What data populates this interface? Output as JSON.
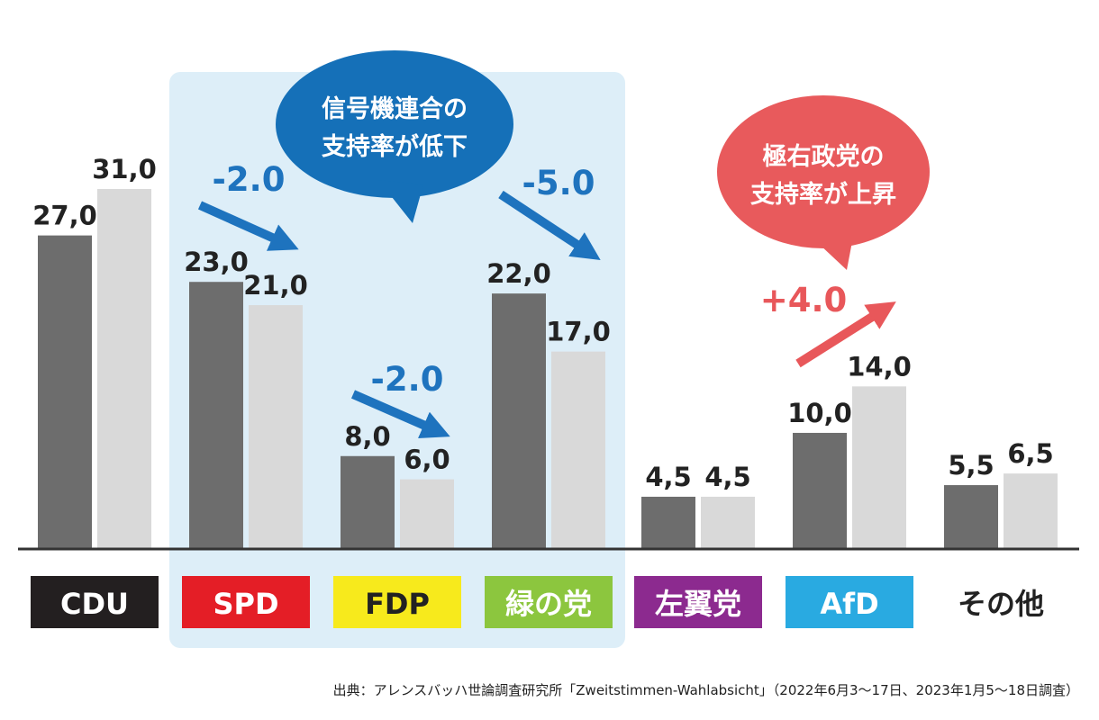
{
  "chart_data": {
    "type": "bar",
    "categories": [
      "CDU",
      "SPD",
      "FDP",
      "緑の党",
      "左翼党",
      "AfD",
      "その他"
    ],
    "series": [
      {
        "values": [
          27.0,
          23.0,
          8.0,
          22.0,
          4.5,
          10.0,
          5.5
        ]
      },
      {
        "values": [
          31.0,
          21.0,
          6.0,
          17.0,
          4.5,
          14.0,
          6.5
        ]
      }
    ],
    "value_labels": [
      [
        "27,0",
        "23,0",
        "8,0",
        "22,0",
        "4,5",
        "10,0",
        "5,5"
      ],
      [
        "31,0",
        "21,0",
        "6,0",
        "17,0",
        "4,5",
        "14,0",
        "6,5"
      ]
    ],
    "category_colors": [
      "#231f20",
      "#e41e26",
      "#f7ea1c",
      "#8cc63e",
      "#8c2a8f",
      "#29aae1",
      "#ffffff"
    ],
    "category_text_colors": [
      "#ffffff",
      "#ffffff",
      "#222222",
      "#ffffff",
      "#ffffff",
      "#ffffff",
      "#222222"
    ],
    "series_colors": [
      "#6d6d6d",
      "#d9d9d9"
    ],
    "ylim": [
      0,
      31
    ],
    "highlight_group": [
      "SPD",
      "FDP",
      "緑の党"
    ],
    "highlight_color": "#ddeef8",
    "changes": [
      {
        "category": "SPD",
        "label": "-2.0",
        "color": "#1e73be"
      },
      {
        "category": "FDP",
        "label": "-2.0",
        "color": "#1e73be"
      },
      {
        "category": "緑の党",
        "label": "-5.0",
        "color": "#1e73be"
      },
      {
        "category": "AfD",
        "label": "+4.0",
        "color": "#e8575a"
      }
    ],
    "callouts": [
      {
        "lines": [
          "信号機連合の",
          "支持率が低下"
        ],
        "color": "#1570b8"
      },
      {
        "lines": [
          "極右政党の",
          "支持率が上昇"
        ],
        "color": "#e85a5c"
      }
    ]
  },
  "source": "出典：アレンスバッハ世論調査研究所「Zweitstimmen-Wahlabsicht」（2022年6月3〜17日、2023年1月5〜18日調査）"
}
